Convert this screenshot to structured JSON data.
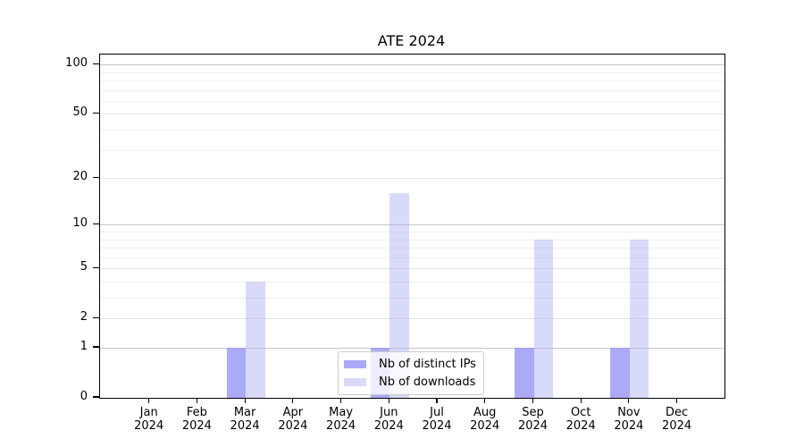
{
  "chart_data": {
    "type": "bar",
    "title": "ATE 2024",
    "categories": [
      "Jan 2024",
      "Feb 2024",
      "Mar 2024",
      "Apr 2024",
      "May 2024",
      "Jun 2024",
      "Jul 2024",
      "Aug 2024",
      "Sep 2024",
      "Oct 2024",
      "Nov 2024",
      "Dec 2024"
    ],
    "series": [
      {
        "name": "Nb of distinct IPs",
        "values": [
          0,
          0,
          1,
          0,
          0,
          1,
          0,
          0,
          1,
          0,
          1,
          0
        ],
        "color": "rgba(149,149,247,0.8)"
      },
      {
        "name": "Nb of downloads",
        "values": [
          0,
          0,
          4,
          0,
          0,
          16,
          0,
          0,
          8,
          0,
          8,
          0
        ],
        "color": "rgba(171,171,242,0.45)"
      }
    ],
    "yscale": "log1p",
    "ylim": [
      0,
      115
    ],
    "yticks": [
      0,
      1,
      2,
      5,
      10,
      20,
      50,
      100
    ],
    "grid": {
      "decade_lines": [
        1,
        10,
        100
      ],
      "labeled_lines": [
        2,
        5,
        20,
        50
      ],
      "minor_lines": [
        3,
        4,
        6,
        7,
        8,
        9,
        30,
        40,
        60,
        70,
        80,
        90
      ]
    },
    "legend_position": "lower center",
    "grid_on": true
  },
  "colors": {
    "spine": "#000000",
    "grid_major": "#c6c6c6",
    "grid_mid": "#e4e4e4",
    "grid_minor": "#f0f0f0"
  }
}
